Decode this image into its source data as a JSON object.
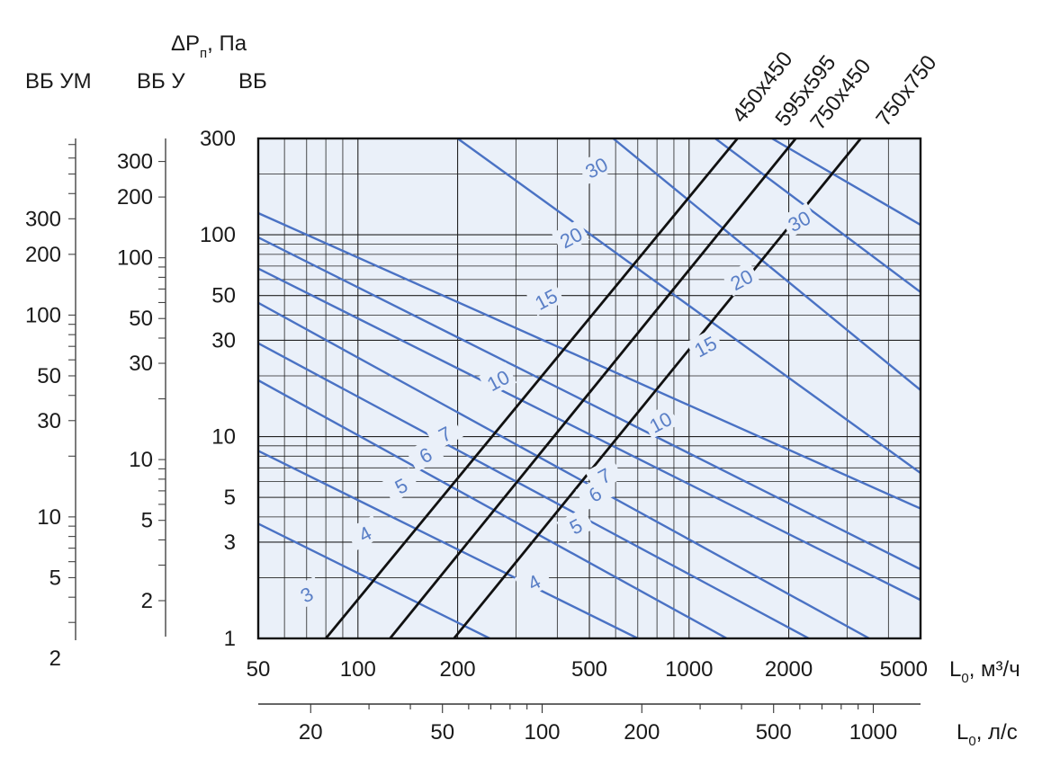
{
  "chart_data": {
    "type": "line",
    "x_scale": "log",
    "y_scale": "log",
    "xlabel_primary": "L",
    "xlabel_primary_sub": "0",
    "xlabel_primary_unit": ", м³/ч",
    "xlabel_secondary": "L",
    "xlabel_secondary_sub": "0",
    "xlabel_secondary_unit": ", л/с",
    "ylabel_main": "ΔP",
    "ylabel_sub": "п",
    "ylabel_unit": ", Па",
    "ylabel_vb": "ВБ",
    "ylabel_vbu": "ВБ У",
    "ylabel_vbum": "ВБ УМ",
    "xlim": [
      50,
      5000
    ],
    "ylim": [
      1,
      300
    ],
    "x_ticks": [
      {
        "v": 50,
        "t": "50"
      },
      {
        "v": 100,
        "t": "100"
      },
      {
        "v": 200,
        "t": "200"
      },
      {
        "v": 500,
        "t": "500"
      },
      {
        "v": 1000,
        "t": "1000"
      },
      {
        "v": 2000,
        "t": "2000"
      },
      {
        "v": 5000,
        "t": "5000"
      }
    ],
    "x2_ticks": [
      {
        "v": 20,
        "t": "20"
      },
      {
        "v": 50,
        "t": "50"
      },
      {
        "v": 100,
        "t": "100"
      },
      {
        "v": 200,
        "t": "200"
      },
      {
        "v": 500,
        "t": "500"
      },
      {
        "v": 1000,
        "t": "1000"
      }
    ],
    "y_ticks": [
      {
        "v": 1,
        "t": "1"
      },
      {
        "v": 3,
        "t": "3"
      },
      {
        "v": 5,
        "t": "5"
      },
      {
        "v": 10,
        "t": "10"
      },
      {
        "v": 30,
        "t": "30"
      },
      {
        "v": 50,
        "t": "50"
      },
      {
        "v": 100,
        "t": "100"
      },
      {
        "v": 300,
        "t": "300"
      }
    ],
    "y_vbu_ticks": [
      {
        "v": 2,
        "t": "2"
      },
      {
        "v": 5,
        "t": "5"
      },
      {
        "v": 10,
        "t": "10"
      },
      {
        "v": 30,
        "t": "30"
      },
      {
        "v": 50,
        "t": "50"
      },
      {
        "v": 100,
        "t": "100"
      },
      {
        "v": 200,
        "t": "200"
      },
      {
        "v": 300,
        "t": "300"
      }
    ],
    "y_vbum_ticks": [
      {
        "v": 2,
        "t": "2"
      },
      {
        "v": 5,
        "t": "5"
      },
      {
        "v": 10,
        "t": "10"
      },
      {
        "v": 30,
        "t": "30"
      },
      {
        "v": 50,
        "t": "50"
      },
      {
        "v": 100,
        "t": "100"
      },
      {
        "v": 200,
        "t": "200"
      },
      {
        "v": 300,
        "t": "300"
      }
    ],
    "size_lines": [
      {
        "name": "450x450",
        "x": [
          80,
          1400
        ],
        "y": [
          1,
          300
        ]
      },
      {
        "name": "595x595",
        "x": [
          125,
          2100
        ],
        "y": [
          1,
          300
        ]
      },
      {
        "name": "750x450",
        "x": [
          195,
          3300
        ],
        "y": [
          1,
          300
        ]
      },
      {
        "name": "750x750",
        "x": [],
        "y": []
      }
    ],
    "velocity_lines": [
      {
        "x": [
          50,
          250
        ],
        "y": [
          3.7,
          1
        ]
      },
      {
        "x": [
          50,
          700
        ],
        "y": [
          8.5,
          1
        ]
      },
      {
        "x": [
          50,
          1300
        ],
        "y": [
          19,
          1
        ]
      },
      {
        "x": [
          50,
          2300
        ],
        "y": [
          29,
          1
        ]
      },
      {
        "x": [
          50,
          3500
        ],
        "y": [
          46,
          1
        ]
      },
      {
        "x": [
          50,
          5000
        ],
        "y": [
          68,
          1.55
        ]
      },
      {
        "x": [
          50,
          5000
        ],
        "y": [
          97,
          2.2
        ]
      },
      {
        "x": [
          50,
          5000
        ],
        "y": [
          128,
          4.4
        ]
      },
      {
        "x": [
          200,
          5000
        ],
        "y": [
          300,
          6.6
        ]
      },
      {
        "x": [
          590,
          5000
        ],
        "y": [
          300,
          17
        ]
      },
      {
        "x": [
          1200,
          5000
        ],
        "y": [
          300,
          52
        ]
      },
      {
        "x": [
          1780,
          5000
        ],
        "y": [
          300,
          112
        ]
      }
    ],
    "velocity_labels": [
      {
        "t": "3",
        "x": 70,
        "y": 1.65
      },
      {
        "t": "4",
        "x": 105,
        "y": 3.3
      },
      {
        "t": "5",
        "x": 135,
        "y": 5.7
      },
      {
        "t": "6",
        "x": 160,
        "y": 8.1
      },
      {
        "t": "7",
        "x": 183,
        "y": 10.3
      },
      {
        "t": "10",
        "x": 265,
        "y": 19
      },
      {
        "t": "15",
        "x": 370,
        "y": 48
      },
      {
        "t": "20",
        "x": 440,
        "y": 97
      },
      {
        "t": "30",
        "x": 525,
        "y": 215
      },
      {
        "t": "4",
        "x": 340,
        "y": 1.9
      },
      {
        "t": "5",
        "x": 455,
        "y": 3.6
      },
      {
        "t": "6",
        "x": 520,
        "y": 5.2
      },
      {
        "t": "7",
        "x": 555,
        "y": 6.4
      },
      {
        "t": "10",
        "x": 820,
        "y": 11.8
      },
      {
        "t": "15",
        "x": 1120,
        "y": 28
      },
      {
        "t": "20",
        "x": 1440,
        "y": 60
      },
      {
        "t": "30",
        "x": 2150,
        "y": 117
      }
    ]
  }
}
